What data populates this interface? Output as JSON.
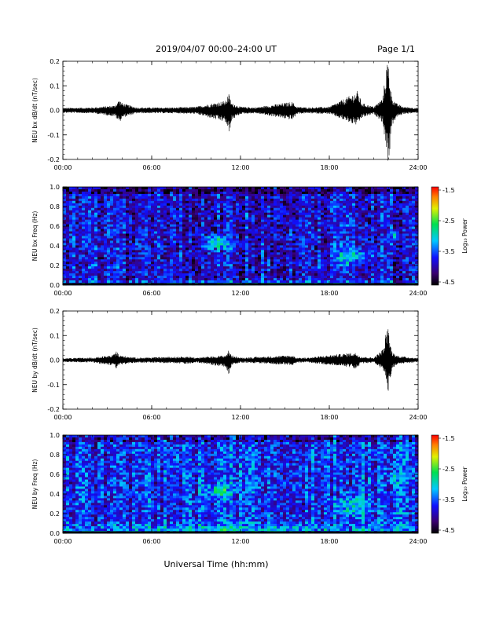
{
  "header": {
    "title": "2019/04/07  00:00–24:00 UT",
    "page": "Page 1/1"
  },
  "footer": {
    "xlabel": "Universal Time (hh:mm)"
  },
  "colorbar": {
    "label": "Log₁₀ Power",
    "ticks": [
      "-1.5",
      "-2.5",
      "-3.5",
      "-4.5"
    ],
    "range": [
      -4.5,
      -1.5
    ]
  },
  "chart_data": [
    {
      "type": "line",
      "ylabel": "NEU bx dB/dt (nT/sec)",
      "xlim": [
        0,
        24
      ],
      "ylim": [
        -0.2,
        0.2
      ],
      "xticks": [
        "00:00",
        "06:00",
        "12:00",
        "18:00",
        "24:00"
      ],
      "yticks": [
        "0.2",
        "0.1",
        "0.0",
        "-0.1",
        "-0.2"
      ],
      "series": [
        {
          "x": [
            0,
            2.0,
            3.5,
            3.8,
            4.0,
            5.0,
            7.5,
            9.0,
            11.0,
            11.2,
            11.4,
            12.0,
            13.0,
            15.5,
            15.8,
            16.5,
            18.0,
            19.7,
            19.9,
            20.2,
            21.0,
            21.6,
            21.9,
            22.0,
            22.2,
            22.5,
            23.0,
            24.0
          ],
          "y_max": [
            0.01,
            0.012,
            0.02,
            0.045,
            0.03,
            0.012,
            0.012,
            0.015,
            0.04,
            0.07,
            0.03,
            0.015,
            0.012,
            0.035,
            0.015,
            0.012,
            0.015,
            0.07,
            0.08,
            0.03,
            0.015,
            0.05,
            0.2,
            0.2,
            0.06,
            0.03,
            0.015,
            0.01
          ],
          "y_min": [
            -0.01,
            -0.012,
            -0.025,
            -0.05,
            -0.03,
            -0.012,
            -0.012,
            -0.015,
            -0.05,
            -0.1,
            -0.04,
            -0.015,
            -0.012,
            -0.04,
            -0.015,
            -0.012,
            -0.015,
            -0.06,
            -0.06,
            -0.03,
            -0.015,
            -0.05,
            -0.2,
            -0.22,
            -0.07,
            -0.03,
            -0.015,
            -0.01
          ]
        }
      ]
    },
    {
      "type": "heatmap",
      "ylabel": "NEU bx Freq (Hz)",
      "xlim": [
        0,
        24
      ],
      "ylim": [
        0,
        1.0
      ],
      "xticks": [
        "00:00",
        "06:00",
        "12:00",
        "18:00",
        "24:00"
      ],
      "yticks": [
        "1.0",
        "0.8",
        "0.6",
        "0.4",
        "0.2",
        "0.0"
      ],
      "value_range": [
        -4.5,
        -1.5
      ],
      "background_level": -3.8,
      "features": [
        {
          "t_center": 10.5,
          "f_center": 0.43,
          "t_width": 0.9,
          "f_width": 0.07,
          "level": -2.6
        },
        {
          "t_center": 19.5,
          "f_center": 0.29,
          "t_width": 0.9,
          "f_width": 0.07,
          "level": -2.8
        },
        {
          "t_center": 22.4,
          "f_center": 0.5,
          "t_width": 0.15,
          "f_width": 0.07,
          "level": -2.9
        },
        {
          "t_center": 12.0,
          "f_center": 0.02,
          "t_width": 12.0,
          "f_width": 0.02,
          "level": -3.0
        }
      ]
    },
    {
      "type": "line",
      "ylabel": "NEU by dB/dt (nT/sec)",
      "xlim": [
        0,
        24
      ],
      "ylim": [
        -0.2,
        0.2
      ],
      "xticks": [
        "00:00",
        "06:00",
        "12:00",
        "18:00",
        "24:00"
      ],
      "yticks": [
        "0.2",
        "0.1",
        "0.0",
        "-0.1",
        "-0.2"
      ],
      "series": [
        {
          "x": [
            0,
            2.0,
            3.4,
            3.6,
            3.8,
            5.0,
            8.5,
            9.0,
            11.0,
            11.2,
            11.4,
            12.0,
            15.5,
            15.8,
            16.5,
            19.5,
            19.8,
            20.1,
            21.0,
            21.7,
            21.9,
            22.0,
            22.2,
            22.5,
            23.0,
            24.0
          ],
          "y_max": [
            0.008,
            0.01,
            0.02,
            0.04,
            0.02,
            0.01,
            0.015,
            0.01,
            0.02,
            0.04,
            0.02,
            0.01,
            0.02,
            0.01,
            0.01,
            0.03,
            0.03,
            0.015,
            0.01,
            0.05,
            0.15,
            0.12,
            0.04,
            0.02,
            0.015,
            0.008
          ],
          "y_min": [
            -0.008,
            -0.01,
            -0.025,
            -0.035,
            -0.02,
            -0.01,
            -0.015,
            -0.01,
            -0.03,
            -0.06,
            -0.02,
            -0.01,
            -0.02,
            -0.01,
            -0.01,
            -0.03,
            -0.04,
            -0.015,
            -0.01,
            -0.05,
            -0.12,
            -0.13,
            -0.04,
            -0.02,
            -0.015,
            -0.008
          ]
        }
      ]
    },
    {
      "type": "heatmap",
      "ylabel": "NEU by Freq (Hz)",
      "xlim": [
        0,
        24
      ],
      "ylim": [
        0,
        1.0
      ],
      "xticks": [
        "00:00",
        "06:00",
        "12:00",
        "18:00",
        "24:00"
      ],
      "yticks": [
        "1.0",
        "0.8",
        "0.6",
        "0.4",
        "0.2",
        "0.0"
      ],
      "value_range": [
        -4.5,
        -1.5
      ],
      "background_level": -3.6,
      "features": [
        {
          "t_center": 10.5,
          "f_center": 0.43,
          "t_width": 0.9,
          "f_width": 0.07,
          "level": -2.7
        },
        {
          "t_center": 19.5,
          "f_center": 0.27,
          "t_width": 1.0,
          "f_width": 0.1,
          "level": -2.8
        },
        {
          "t_center": 22.4,
          "f_center": 0.55,
          "t_width": 0.2,
          "f_width": 0.07,
          "level": -2.9
        },
        {
          "t_center": 12.0,
          "f_center": 0.04,
          "t_width": 12.0,
          "f_width": 0.05,
          "level": -3.0
        }
      ]
    }
  ]
}
